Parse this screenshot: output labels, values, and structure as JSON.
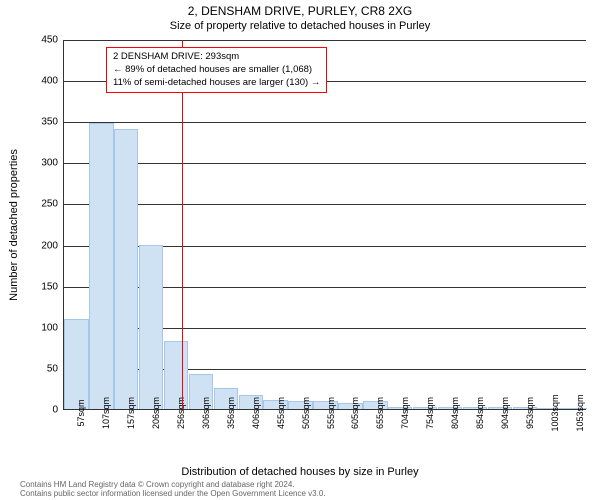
{
  "chart": {
    "type": "histogram",
    "title": "2, DENSHAM DRIVE, PURLEY, CR8 2XG",
    "subtitle": "Size of property relative to detached houses in Purley",
    "xlabel": "Distribution of detached houses by size in Purley",
    "ylabel": "Number of detached properties",
    "background_color": "#ffffff",
    "bar_fill": "#cfe2f3",
    "bar_stroke": "#a8c7e8",
    "grid_color": "#333333",
    "title_fontsize": 12,
    "subtitle_fontsize": 11,
    "label_fontsize": 11,
    "tick_fontsize": 10,
    "x_ticks": [
      "57sqm",
      "107sqm",
      "157sqm",
      "206sqm",
      "256sqm",
      "306sqm",
      "356sqm",
      "406sqm",
      "455sqm",
      "505sqm",
      "555sqm",
      "605sqm",
      "655sqm",
      "704sqm",
      "754sqm",
      "804sqm",
      "854sqm",
      "904sqm",
      "953sqm",
      "1003sqm",
      "1053sqm"
    ],
    "y_min": 0,
    "y_max": 450,
    "y_tick_step": 50,
    "y_ticks": [
      0,
      50,
      100,
      150,
      200,
      250,
      300,
      350,
      400,
      450
    ],
    "bars": [
      110,
      348,
      341,
      200,
      83,
      43,
      25,
      17,
      11,
      10,
      10,
      7,
      10,
      3,
      3,
      3,
      2,
      2,
      3,
      0,
      0
    ],
    "marker": {
      "value_sqm": 293,
      "line_color": "#ff0000",
      "box_border": "#ff0000",
      "lines": [
        "2 DENSHAM DRIVE: 293sqm",
        "← 89% of detached houses are smaller (1,068)",
        "11% of semi-detached houses are larger (130) →"
      ]
    }
  },
  "footer": {
    "line1": "Contains HM Land Registry data © Crown copyright and database right 2024.",
    "line2": "Contains public sector information licensed under the Open Government Licence v3.0."
  }
}
